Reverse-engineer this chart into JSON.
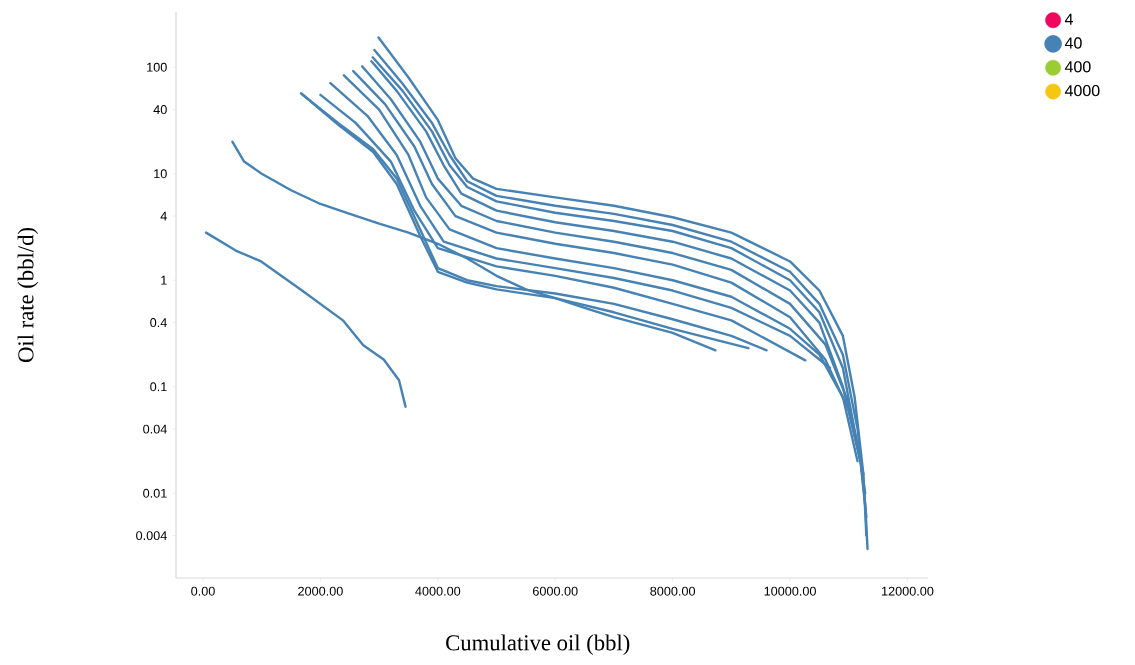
{
  "chart_data": {
    "type": "line",
    "xlabel": "Cumulative oil (bbl)",
    "ylabel": "Oil rate (bbl/d)",
    "log": "y",
    "legend": "top right",
    "xlim": [
      -460,
      12350
    ],
    "ylim": [
      0.0016,
      330
    ],
    "xticks": [
      {
        "value": 0,
        "label": "0.00"
      },
      {
        "value": 2000,
        "label": "2000.00"
      },
      {
        "value": 4000,
        "label": "4000.00"
      },
      {
        "value": 6000,
        "label": "6000.00"
      },
      {
        "value": 8000,
        "label": "8000.00"
      },
      {
        "value": 10000,
        "label": "10000.00"
      },
      {
        "value": 12000,
        "label": "12000.00"
      }
    ],
    "yticks": [
      0.004,
      0.01,
      0.04,
      0.1,
      0.4,
      1,
      4,
      10,
      40,
      100
    ],
    "series": [
      {
        "name": "4",
        "color": "#f0055f"
      },
      {
        "name": "40",
        "color": "#4682b4",
        "x": [
          52,
          557,
          991,
          1687,
          2383,
          2730,
          3078,
          3339,
          3450
        ],
        "values": [
          2.8,
          1.9,
          1.5,
          0.8,
          0.42,
          0.245,
          0.18,
          0.115,
          0.065
        ]
      },
      {
        "color": "#4682b4",
        "x": [
          500,
          700,
          1000,
          1500,
          2000,
          2500,
          3000,
          3500,
          4000,
          4500,
          5000,
          5500,
          6000,
          6500,
          7000,
          8000,
          8730
        ],
        "values": [
          20,
          13,
          10,
          7,
          5.2,
          4.2,
          3.4,
          2.8,
          2.2,
          1.6,
          1.1,
          0.82,
          0.68,
          0.55,
          0.45,
          0.32,
          0.22
        ]
      },
      {
        "color": "#4682b4",
        "x": [
          1670,
          2300,
          2900,
          3300,
          3700,
          4000,
          4500,
          5000,
          6000,
          7000,
          8000,
          9290
        ],
        "values": [
          57,
          29,
          16,
          8,
          2.6,
          1.2,
          0.95,
          0.82,
          0.68,
          0.5,
          0.35,
          0.23
        ]
      },
      {
        "color": "#4682b4",
        "x": [
          1700,
          2300,
          2900,
          3300,
          3700,
          4000,
          4500,
          5000,
          6000,
          7000,
          8000,
          9000,
          9600
        ],
        "values": [
          55,
          30,
          17,
          9,
          3,
          1.3,
          1.0,
          0.88,
          0.75,
          0.6,
          0.43,
          0.3,
          0.22
        ]
      },
      {
        "color": "#4682b4",
        "x": [
          2000,
          2600,
          3200,
          3600,
          4000,
          5000,
          6000,
          7000,
          8000,
          9000,
          10260
        ],
        "values": [
          55,
          30,
          13,
          4.5,
          2.0,
          1.35,
          1.1,
          0.85,
          0.6,
          0.42,
          0.177
        ]
      },
      {
        "color": "#4682b4",
        "x": [
          2170,
          2800,
          3300,
          3700,
          4100,
          5000,
          6000,
          7000,
          8000,
          9000,
          10000,
          10680
        ],
        "values": [
          71,
          35,
          15,
          5,
          2.3,
          1.6,
          1.3,
          1.05,
          0.8,
          0.55,
          0.3,
          0.15
        ]
      },
      {
        "color": "#4682b4",
        "x": [
          2400,
          3000,
          3500,
          3800,
          4200,
          5000,
          6000,
          7000,
          8000,
          9000,
          10000,
          10500,
          10900,
          11150
        ],
        "values": [
          84,
          40,
          15,
          6,
          3,
          2.0,
          1.6,
          1.3,
          1.0,
          0.7,
          0.35,
          0.2,
          0.08,
          0.02
        ]
      },
      {
        "color": "#4682b4",
        "x": [
          2560,
          3100,
          3600,
          3900,
          4300,
          5000,
          6000,
          7000,
          8000,
          9000,
          10000,
          10600,
          11000,
          11200
        ],
        "values": [
          92,
          45,
          18,
          8,
          4,
          2.8,
          2.2,
          1.8,
          1.4,
          0.95,
          0.45,
          0.18,
          0.06,
          0.02
        ]
      },
      {
        "color": "#4682b4",
        "x": [
          2710,
          3200,
          3700,
          4000,
          4400,
          5000,
          6000,
          7000,
          8000,
          9000,
          10000,
          10600,
          11000,
          11250
        ],
        "values": [
          102,
          50,
          20,
          9,
          5,
          3.6,
          2.8,
          2.3,
          1.8,
          1.25,
          0.6,
          0.25,
          0.07,
          0.015
        ]
      },
      {
        "color": "#4682b4",
        "x": [
          2870,
          3300,
          3800,
          4100,
          4400,
          5000,
          6000,
          7000,
          8000,
          9000,
          10000,
          10500,
          10900,
          11200,
          11280
        ],
        "values": [
          114,
          60,
          25,
          12,
          6.5,
          4.5,
          3.5,
          2.9,
          2.3,
          1.6,
          0.8,
          0.4,
          0.1,
          0.02,
          0.01
        ]
      },
      {
        "color": "#4682b4",
        "x": [
          2890,
          3400,
          3900,
          4200,
          4500,
          5000,
          6000,
          7000,
          8000,
          9000,
          10000,
          10500,
          10900,
          11200,
          11300
        ],
        "values": [
          124,
          60,
          25,
          12,
          7.5,
          5.5,
          4.3,
          3.6,
          2.9,
          2.0,
          1.0,
          0.5,
          0.15,
          0.02,
          0.006
        ]
      },
      {
        "color": "#4682b4",
        "x": [
          2920,
          3400,
          3900,
          4200,
          4500,
          5000,
          6000,
          7000,
          8000,
          9000,
          10000,
          10500,
          10900,
          11150,
          11280,
          11320
        ],
        "values": [
          145,
          70,
          30,
          15,
          8.5,
          6.2,
          5.0,
          4.2,
          3.3,
          2.3,
          1.2,
          0.6,
          0.2,
          0.04,
          0.008,
          0.003
        ]
      },
      {
        "color": "#4682b4",
        "x": [
          2990,
          3500,
          4000,
          4300,
          4600,
          5000,
          6000,
          7000,
          8000,
          9000,
          10000,
          10500,
          10900,
          11100,
          11250,
          11300
        ],
        "values": [
          190,
          80,
          32,
          14,
          9,
          7.2,
          6.0,
          5.0,
          3.9,
          2.8,
          1.5,
          0.8,
          0.3,
          0.08,
          0.015,
          0.004
        ]
      },
      {
        "name": "400",
        "color": "#9acd32"
      },
      {
        "name": "4000",
        "color": "#f5c710"
      }
    ]
  }
}
